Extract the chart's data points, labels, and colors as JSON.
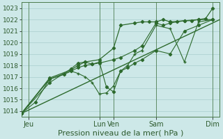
{
  "xlabel": "Pression niveau de la mer( hPa )",
  "bg_color": "#cfe8e8",
  "plot_bg_color": "#d4efef",
  "grid_color": "#b8d8d8",
  "line_color": "#2d6a2d",
  "vline_color": "#4a7a4a",
  "ylim": [
    1013.5,
    1023.5
  ],
  "yticks": [
    1014,
    1015,
    1016,
    1017,
    1018,
    1019,
    1020,
    1021,
    1022,
    1023
  ],
  "xlim": [
    0,
    28
  ],
  "xtick_positions": [
    1,
    11,
    13,
    19,
    27
  ],
  "xtick_labels": [
    "Jeu",
    "Lun",
    "Ven",
    "Sam",
    "Dim"
  ],
  "vlines_x": [
    1,
    11,
    13,
    19,
    27
  ],
  "lines": [
    {
      "x": [
        0,
        28
      ],
      "y": [
        1013.8,
        1022.0
      ],
      "marker": "None",
      "markersize": 0,
      "linewidth": 1.0
    },
    {
      "x": [
        0,
        2,
        4,
        6,
        7,
        8,
        9,
        10,
        11,
        13,
        14,
        16,
        17,
        19,
        20,
        21,
        22,
        23,
        24,
        25,
        27
      ],
      "y": [
        1013.8,
        1014.8,
        1016.8,
        1017.2,
        1017.5,
        1017.8,
        1018.0,
        1018.1,
        1018.2,
        1018.5,
        1018.7,
        1019.3,
        1019.7,
        1021.7,
        1021.5,
        1021.7,
        1021.8,
        1021.9,
        1021.9,
        1022.0,
        1022.0
      ],
      "marker": "D",
      "markersize": 2.2,
      "linewidth": 0.8
    },
    {
      "x": [
        0,
        4,
        7,
        8,
        9,
        10,
        11,
        12,
        13,
        14,
        15,
        16,
        17,
        19,
        21,
        23,
        25,
        27
      ],
      "y": [
        1013.8,
        1016.8,
        1017.5,
        1017.3,
        1017.0,
        1016.5,
        1015.5,
        1015.6,
        1016.2,
        1017.5,
        1018.0,
        1019.0,
        1019.3,
        1021.5,
        1021.2,
        1018.3,
        1021.8,
        1022.0
      ],
      "marker": "+",
      "markersize": 3.5,
      "linewidth": 0.8
    },
    {
      "x": [
        0,
        4,
        7,
        8,
        9,
        11,
        13,
        14,
        16,
        17,
        18,
        19,
        20,
        21,
        23,
        25,
        26,
        27
      ],
      "y": [
        1013.8,
        1016.9,
        1017.6,
        1018.0,
        1018.3,
        1018.5,
        1019.5,
        1021.5,
        1021.7,
        1021.8,
        1021.8,
        1021.8,
        1022.0,
        1021.8,
        1021.9,
        1022.0,
        1022.1,
        1023.0
      ],
      "marker": "D",
      "markersize": 2.2,
      "linewidth": 0.9
    },
    {
      "x": [
        0,
        4,
        7,
        8,
        9,
        10,
        11,
        12,
        13,
        14,
        15,
        16,
        17,
        19,
        21,
        23,
        25,
        27
      ],
      "y": [
        1013.8,
        1016.5,
        1017.7,
        1018.2,
        1018.3,
        1018.1,
        1018.3,
        1016.1,
        1015.7,
        1017.5,
        1017.8,
        1018.2,
        1018.5,
        1019.3,
        1019.0,
        1021.0,
        1021.5,
        1022.0
      ],
      "marker": "D",
      "markersize": 2.2,
      "linewidth": 0.8
    }
  ],
  "xlabel_fontsize": 8,
  "ytick_fontsize": 6.5,
  "xtick_fontsize": 7
}
